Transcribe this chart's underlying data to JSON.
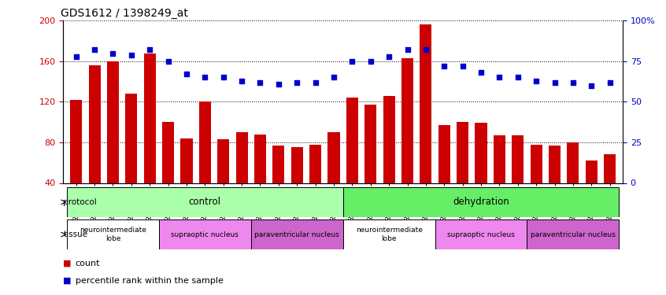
{
  "title": "GDS1612 / 1398249_at",
  "samples": [
    "GSM69787",
    "GSM69788",
    "GSM69789",
    "GSM69790",
    "GSM69791",
    "GSM69461",
    "GSM69462",
    "GSM69463",
    "GSM69464",
    "GSM69465",
    "GSM69475",
    "GSM69476",
    "GSM69477",
    "GSM69478",
    "GSM69479",
    "GSM69782",
    "GSM69783",
    "GSM69784",
    "GSM69785",
    "GSM69786",
    "GSM69268",
    "GSM69457",
    "GSM69458",
    "GSM69459",
    "GSM69460",
    "GSM69470",
    "GSM69471",
    "GSM69472",
    "GSM69473",
    "GSM69474"
  ],
  "counts": [
    122,
    156,
    160,
    128,
    168,
    100,
    84,
    120,
    83,
    90,
    88,
    77,
    75,
    78,
    90,
    124,
    117,
    126,
    163,
    196,
    97,
    100,
    99,
    87,
    87,
    78,
    77,
    80,
    62,
    68
  ],
  "percentiles": [
    78,
    82,
    80,
    79,
    82,
    75,
    67,
    65,
    65,
    63,
    62,
    61,
    62,
    62,
    65,
    75,
    75,
    78,
    82,
    82,
    72,
    72,
    68,
    65,
    65,
    63,
    62,
    62,
    60,
    62
  ],
  "ylim_left": [
    40,
    200
  ],
  "ylim_right": [
    0,
    100
  ],
  "yticks_left": [
    40,
    80,
    120,
    160,
    200
  ],
  "yticks_right": [
    0,
    25,
    50,
    75,
    100
  ],
  "bar_color": "#cc0000",
  "scatter_color": "#0000cc",
  "protocol_blocks": [
    {
      "label": "control",
      "start": 0,
      "end": 15,
      "color": "#aaffaa"
    },
    {
      "label": "dehydration",
      "start": 15,
      "end": 30,
      "color": "#66ee66"
    }
  ],
  "tissue_blocks": [
    {
      "label": "neurointermediate\nlobe",
      "start": 0,
      "end": 5,
      "color": "#ffffff"
    },
    {
      "label": "supraoptic nucleus",
      "start": 5,
      "end": 10,
      "color": "#ee88ee"
    },
    {
      "label": "paraventricular nucleus",
      "start": 10,
      "end": 15,
      "color": "#cc66cc"
    },
    {
      "label": "neurointermediate\nlobe",
      "start": 15,
      "end": 20,
      "color": "#ffffff"
    },
    {
      "label": "supraoptic nucleus",
      "start": 20,
      "end": 25,
      "color": "#ee88ee"
    },
    {
      "label": "paraventricular nucleus",
      "start": 25,
      "end": 30,
      "color": "#cc66cc"
    }
  ],
  "legend_count_color": "#cc0000",
  "legend_pct_color": "#0000cc"
}
